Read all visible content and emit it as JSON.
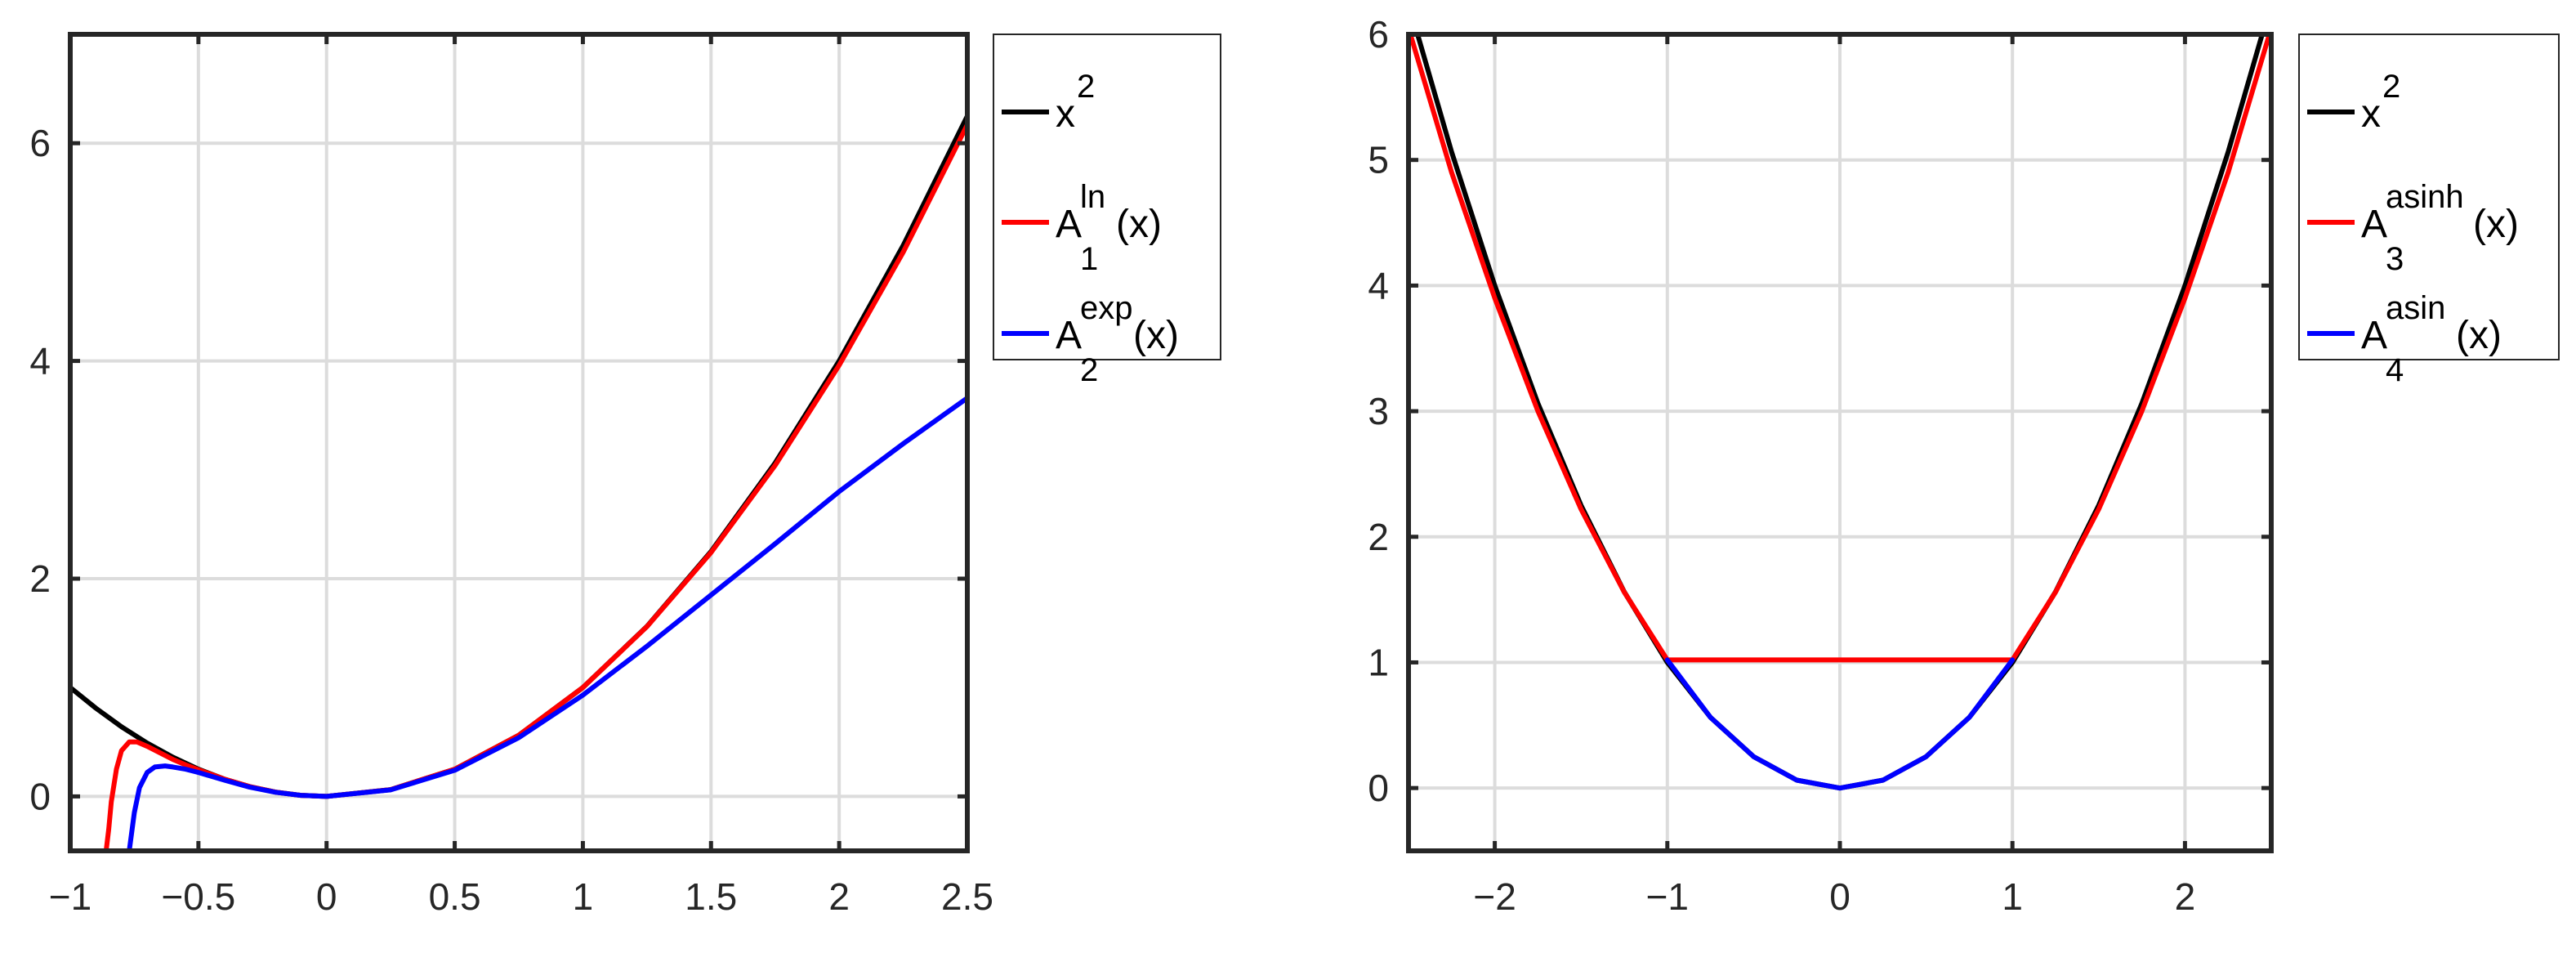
{
  "chart_data": [
    {
      "type": "line",
      "title": "",
      "xlabel": "",
      "ylabel": "",
      "xlim": [
        -1,
        2.5
      ],
      "ylim": [
        -0.5,
        7
      ],
      "grid": true,
      "legend_position": "outside-right-top",
      "x_ticks": [
        {
          "value": -1,
          "label": "−1"
        },
        {
          "value": -0.5,
          "label": "−0.5"
        },
        {
          "value": 0,
          "label": "0"
        },
        {
          "value": 0.5,
          "label": "0.5"
        },
        {
          "value": 1,
          "label": "1"
        },
        {
          "value": 1.5,
          "label": "1.5"
        },
        {
          "value": 2,
          "label": "2"
        },
        {
          "value": 2.5,
          "label": "2.5"
        }
      ],
      "y_ticks": [
        {
          "value": 0,
          "label": "0"
        },
        {
          "value": 2,
          "label": "2"
        },
        {
          "value": 4,
          "label": "4"
        },
        {
          "value": 6,
          "label": "6"
        }
      ],
      "series": [
        {
          "legend": {
            "base": "x",
            "sup": "2",
            "sub": "",
            "suffix": ""
          },
          "color": "#000000",
          "x": [
            -1,
            -0.9,
            -0.8,
            -0.7,
            -0.6,
            -0.5,
            -0.4,
            -0.3,
            -0.2,
            -0.1,
            0,
            0.25,
            0.5,
            0.75,
            1,
            1.25,
            1.5,
            1.75,
            2,
            2.25,
            2.5
          ],
          "y": [
            1,
            0.81,
            0.64,
            0.49,
            0.36,
            0.25,
            0.16,
            0.09,
            0.04,
            0.01,
            0,
            0.0625,
            0.25,
            0.5625,
            1,
            1.5625,
            2.25,
            3.0625,
            4,
            5.0625,
            6.25
          ]
        },
        {
          "legend": {
            "base": "A",
            "sup": "ln",
            "sub": "1",
            "suffix": "(x)"
          },
          "color": "#ff0000",
          "x": [
            -0.86,
            -0.85,
            -0.84,
            -0.82,
            -0.8,
            -0.77,
            -0.74,
            -0.7,
            -0.65,
            -0.6,
            -0.55,
            -0.5,
            -0.4,
            -0.3,
            -0.2,
            -0.1,
            0,
            0.25,
            0.5,
            0.75,
            1,
            1.25,
            1.5,
            1.75,
            2,
            2.25,
            2.5
          ],
          "y": [
            -0.5,
            -0.3,
            -0.05,
            0.25,
            0.42,
            0.5,
            0.5,
            0.46,
            0.4,
            0.34,
            0.29,
            0.245,
            0.16,
            0.09,
            0.04,
            0.01,
            0,
            0.0625,
            0.25,
            0.5625,
            1,
            1.56,
            2.24,
            3.04,
            3.96,
            5.0,
            6.17
          ]
        },
        {
          "legend": {
            "base": "A",
            "sup": "exp",
            "sub": "2",
            "suffix": "(x)"
          },
          "color": "#0000ff",
          "x": [
            -0.77,
            -0.75,
            -0.73,
            -0.7,
            -0.67,
            -0.63,
            -0.6,
            -0.55,
            -0.5,
            -0.4,
            -0.3,
            -0.2,
            -0.1,
            0,
            0.25,
            0.5,
            0.75,
            1,
            1.25,
            1.5,
            1.75,
            2,
            2.25,
            2.5
          ],
          "y": [
            -0.5,
            -0.15,
            0.08,
            0.22,
            0.27,
            0.28,
            0.27,
            0.25,
            0.22,
            0.15,
            0.085,
            0.038,
            0.01,
            0,
            0.06,
            0.24,
            0.54,
            0.93,
            1.38,
            1.85,
            2.32,
            2.8,
            3.24,
            3.66
          ]
        }
      ]
    },
    {
      "type": "line",
      "title": "",
      "xlabel": "",
      "ylabel": "",
      "xlim": [
        -2.5,
        2.5
      ],
      "ylim": [
        -0.5,
        6
      ],
      "grid": true,
      "legend_position": "outside-right-top",
      "x_ticks": [
        {
          "value": -2,
          "label": "−2"
        },
        {
          "value": -1,
          "label": "−1"
        },
        {
          "value": 0,
          "label": "0"
        },
        {
          "value": 1,
          "label": "1"
        },
        {
          "value": 2,
          "label": "2"
        }
      ],
      "y_ticks": [
        {
          "value": 0,
          "label": "0"
        },
        {
          "value": 1,
          "label": "1"
        },
        {
          "value": 2,
          "label": "2"
        },
        {
          "value": 3,
          "label": "3"
        },
        {
          "value": 4,
          "label": "4"
        },
        {
          "value": 5,
          "label": "5"
        },
        {
          "value": 6,
          "label": "6"
        }
      ],
      "series": [
        {
          "legend": {
            "base": "x",
            "sup": "2",
            "sub": "",
            "suffix": ""
          },
          "color": "#000000",
          "x": [
            -2.5,
            -2.25,
            -2,
            -1.75,
            -1.5,
            -1.25,
            -1,
            -0.75,
            -0.5,
            -0.25,
            0,
            0.25,
            0.5,
            0.75,
            1,
            1.25,
            1.5,
            1.75,
            2,
            2.25,
            2.5
          ],
          "y": [
            6.25,
            5.0625,
            4,
            3.0625,
            2.25,
            1.5625,
            1,
            0.5625,
            0.25,
            0.0625,
            0,
            0.0625,
            0.25,
            0.5625,
            1,
            1.5625,
            2.25,
            3.0625,
            4,
            5.0625,
            6.25
          ]
        },
        {
          "legend": {
            "base": "A",
            "sup": "asinh",
            "sub": "3",
            "suffix": "(x)"
          },
          "color": "#ff0000",
          "x": [
            -2.5,
            -2.25,
            -2,
            -1.75,
            -1.5,
            -1.25,
            -1,
            1,
            1.25,
            1.5,
            1.75,
            2,
            2.25,
            2.5
          ],
          "y": [
            6.05,
            4.9,
            3.9,
            3.0,
            2.22,
            1.56,
            1.02,
            1.02,
            1.56,
            2.22,
            3.0,
            3.9,
            4.9,
            6.05
          ]
        },
        {
          "legend": {
            "base": "A",
            "sup": "asin",
            "sub": "4",
            "suffix": "(x)"
          },
          "color": "#0000ff",
          "x": [
            -1,
            -0.75,
            -0.5,
            -0.25,
            0,
            0.25,
            0.5,
            0.75,
            1
          ],
          "y": [
            1.02,
            0.5625,
            0.25,
            0.0625,
            0,
            0.0625,
            0.25,
            0.5625,
            1.02
          ]
        }
      ]
    }
  ]
}
